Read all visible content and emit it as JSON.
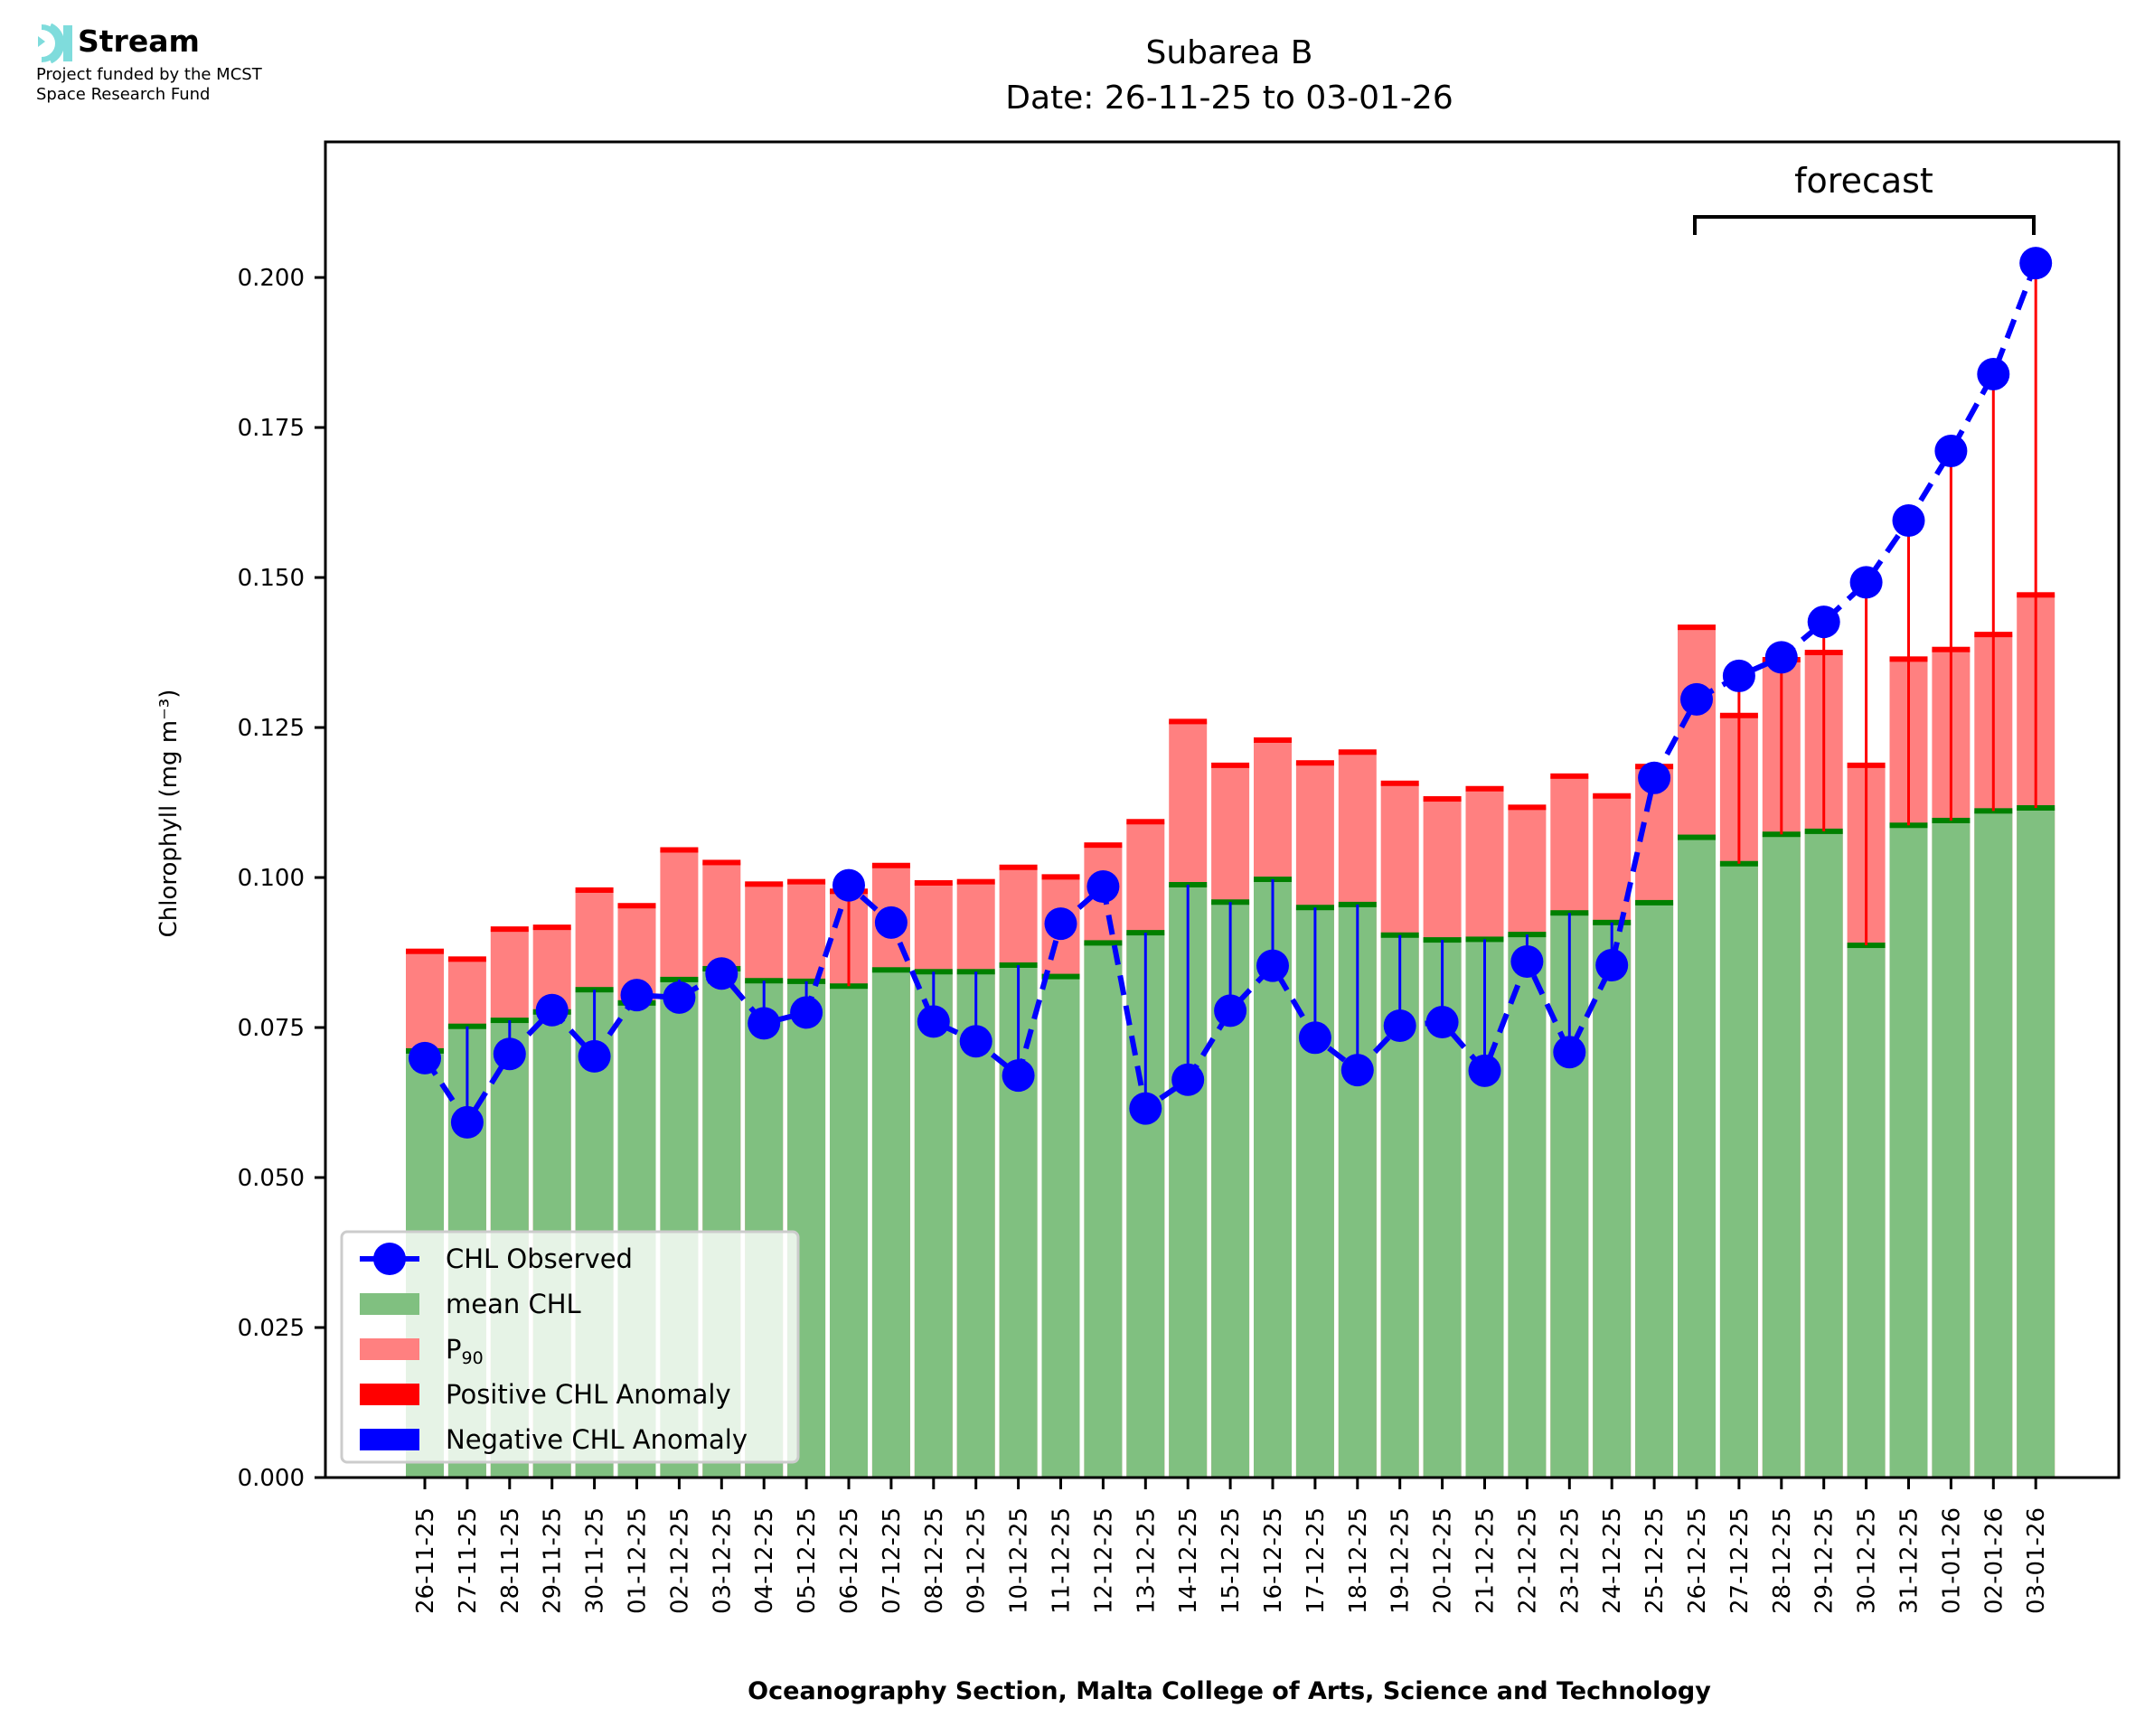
{
  "branding": {
    "name": "Stream",
    "funding_line1": "Project funded by the MCST",
    "funding_line2": "Space Research Fund",
    "icon": "stream-waves-icon",
    "icon_color": "#7fdcdc"
  },
  "chart_data": {
    "type": "bar",
    "title": "Subarea B",
    "subtitle": "Date: 26-11-25 to 03-01-26",
    "xlabel": "Oceanography Section, Malta College of Arts, Science and Technology",
    "ylabel": "Chlorophyll (mg m⁻³)",
    "ylim": [
      0,
      0.2226
    ],
    "yticks": [
      "0.000",
      "0.025",
      "0.050",
      "0.075",
      "0.100",
      "0.125",
      "0.150",
      "0.175",
      "0.200"
    ],
    "ytick_values": [
      0,
      0.025,
      0.05,
      0.075,
      0.1,
      0.125,
      0.15,
      0.175,
      0.2
    ],
    "grid": false,
    "legend_position": "lower-left",
    "annotation": {
      "text": "forecast",
      "start": "26-12-25",
      "end": "03-01-26"
    },
    "forecast_start_index": 30,
    "categories": [
      "26-11-25",
      "27-11-25",
      "28-11-25",
      "29-11-25",
      "30-11-25",
      "01-12-25",
      "02-12-25",
      "03-12-25",
      "04-12-25",
      "05-12-25",
      "06-12-25",
      "07-12-25",
      "08-12-25",
      "09-12-25",
      "10-12-25",
      "11-12-25",
      "12-12-25",
      "13-12-25",
      "14-12-25",
      "15-12-25",
      "16-12-25",
      "17-12-25",
      "18-12-25",
      "19-12-25",
      "20-12-25",
      "21-12-25",
      "22-12-25",
      "23-12-25",
      "24-12-25",
      "25-12-25",
      "26-12-25",
      "27-12-25",
      "28-12-25",
      "29-12-25",
      "30-12-25",
      "31-12-25",
      "01-01-26",
      "02-01-26",
      "03-01-26"
    ],
    "series": [
      {
        "name": "mean CHL",
        "kind": "bar",
        "color": "#80c080",
        "values": [
          0.0711,
          0.0752,
          0.0762,
          0.0776,
          0.0813,
          0.0791,
          0.083,
          0.0848,
          0.0828,
          0.0827,
          0.0819,
          0.0846,
          0.0843,
          0.0843,
          0.0854,
          0.0835,
          0.0891,
          0.0908,
          0.0988,
          0.0959,
          0.0997,
          0.095,
          0.0955,
          0.0904,
          0.0896,
          0.0897,
          0.0905,
          0.0941,
          0.0925,
          0.0958,
          0.1067,
          0.1023,
          0.1072,
          0.1077,
          0.0887,
          0.1087,
          0.1095,
          0.1111,
          0.1116
        ]
      },
      {
        "name": "P₉₀",
        "kind": "bar",
        "color": "#ff8080",
        "values": [
          0.0877,
          0.0864,
          0.0914,
          0.0917,
          0.0979,
          0.0953,
          0.1046,
          0.1025,
          0.0989,
          0.0993,
          0.0977,
          0.102,
          0.0991,
          0.0993,
          0.1017,
          0.1001,
          0.1054,
          0.1093,
          0.126,
          0.1187,
          0.1229,
          0.1191,
          0.1209,
          0.1157,
          0.1131,
          0.1148,
          0.1117,
          0.1169,
          0.1136,
          0.1185,
          0.1417,
          0.127,
          0.1363,
          0.1375,
          0.1187,
          0.1364,
          0.138,
          0.1405,
          0.1471
        ]
      },
      {
        "name": "CHL Observed",
        "kind": "line",
        "color": "#0000ff",
        "values": [
          0.0699,
          0.0592,
          0.0706,
          0.0779,
          0.0702,
          0.0804,
          0.08,
          0.084,
          0.0757,
          0.0775,
          0.0987,
          0.0925,
          0.076,
          0.0727,
          0.067,
          0.0923,
          0.0985,
          0.0615,
          0.0663,
          0.0778,
          0.0853,
          0.0733,
          0.0679,
          0.0753,
          0.0759,
          0.0678,
          0.086,
          0.0709,
          0.0854,
          0.1166,
          0.1297,
          0.1336,
          0.1367,
          0.1426,
          0.1492,
          0.1595,
          0.1711,
          0.1839,
          0.2024
        ]
      }
    ],
    "legend": [
      {
        "label": "CHL Observed",
        "kind": "line-marker",
        "color": "#0000ff"
      },
      {
        "label": "mean CHL",
        "kind": "patch",
        "color": "#80c080"
      },
      {
        "label": "P",
        "sub": "90",
        "kind": "patch",
        "color": "#ff8080"
      },
      {
        "label": "Positive CHL Anomaly",
        "kind": "patch",
        "color": "#ff0000"
      },
      {
        "label": "Negative CHL Anomaly",
        "kind": "patch",
        "color": "#0000ff"
      }
    ],
    "colors": {
      "mean_edge": "#008000",
      "p90_edge": "#ff0000",
      "pos_anomaly": "#ff0000",
      "neg_anomaly": "#0000ff"
    }
  }
}
